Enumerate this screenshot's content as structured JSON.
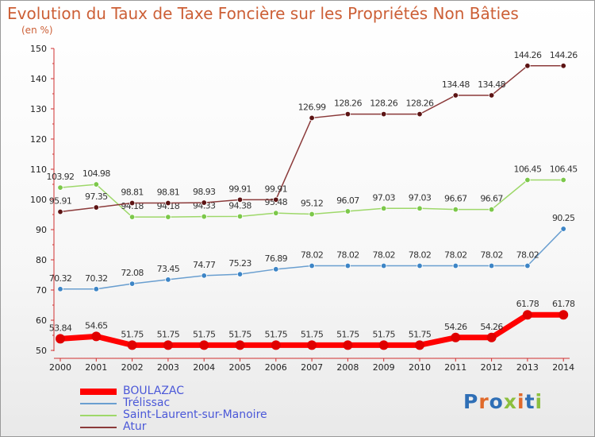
{
  "title": "Evolution du Taux de Taxe Foncière sur les Propriétés Non Bâties",
  "unit_label": "(en %)",
  "logo": {
    "text": "Proxiti",
    "letters": [
      "P",
      "r",
      "o",
      "x",
      "i",
      "t",
      "i"
    ],
    "colors": [
      "#2f6fb6",
      "#e06a2b",
      "#2f6fb6",
      "#8cbf3f",
      "#e06a2b",
      "#2f6fb6",
      "#8cbf3f"
    ]
  },
  "chart_data": {
    "type": "line",
    "title": "Evolution du Taux de Taxe Foncière sur les Propriétés Non Bâties",
    "ylabel": "(en %)",
    "xlabel": "",
    "ylim": [
      50,
      150
    ],
    "yticks": [
      50,
      60,
      70,
      80,
      90,
      100,
      110,
      120,
      130,
      140,
      150
    ],
    "categories": [
      "2000",
      "2001",
      "2002",
      "2003",
      "2004",
      "2005",
      "2006",
      "2007",
      "2008",
      "2009",
      "2010",
      "2011",
      "2012",
      "2013",
      "2014"
    ],
    "series": [
      {
        "name": "BOULAZAC",
        "color": "#ff0000",
        "marker": "#e00000",
        "width": 7,
        "r": 6,
        "values": [
          53.84,
          54.65,
          51.75,
          51.75,
          51.75,
          51.75,
          51.75,
          51.75,
          51.75,
          51.75,
          51.75,
          54.26,
          54.26,
          61.78,
          61.78
        ],
        "labels": [
          "53.84",
          "54.65",
          "51.75",
          "51.75",
          "51.75",
          "51.75",
          "51.75",
          "51.75",
          "51.75",
          "51.75",
          "51.75",
          "54.26",
          "54.26",
          "61.78",
          "61.78"
        ]
      },
      {
        "name": "Trélissac",
        "color": "#6a9fd0",
        "marker": "#3d85c6",
        "width": 1.5,
        "r": 3.3,
        "values": [
          70.32,
          70.32,
          72.08,
          73.45,
          74.77,
          75.23,
          76.89,
          78.02,
          78.02,
          78.02,
          78.02,
          78.02,
          78.02,
          78.02,
          90.25
        ],
        "labels": [
          "70.32",
          "70.32",
          "72.08",
          "73.45",
          "74.77",
          "75.23",
          "76.89",
          "78.02",
          "78.02",
          "78.02",
          "78.02",
          "78.02",
          "78.02",
          "78.02",
          "90.25"
        ]
      },
      {
        "name": "Saint-Laurent-sur-Manoire",
        "color": "#9ed86a",
        "marker": "#7cc84a",
        "width": 1.5,
        "r": 3.3,
        "values": [
          103.92,
          104.98,
          94.18,
          94.18,
          94.33,
          94.38,
          95.48,
          95.12,
          96.07,
          97.03,
          97.03,
          96.67,
          96.67,
          106.45,
          106.45
        ],
        "labels": [
          "103.92",
          "104.98",
          "94.18",
          "94.18",
          "94.33",
          "94.38",
          "95.48",
          "95.12",
          "96.07",
          "97.03",
          "97.03",
          "96.67",
          "96.67",
          "106.45",
          "106.45"
        ]
      },
      {
        "name": "Atur",
        "color": "#8b3a3a",
        "marker": "#5c1414",
        "width": 1.5,
        "r": 3.3,
        "values": [
          95.91,
          97.35,
          98.81,
          98.81,
          98.93,
          99.91,
          99.91,
          126.99,
          128.26,
          128.26,
          128.26,
          134.48,
          134.48,
          144.26,
          144.26
        ],
        "labels": [
          "95.91",
          "97.35",
          "98.81",
          "98.81",
          "98.93",
          "99.91",
          "99.91",
          "126.99",
          "128.26",
          "128.26",
          "128.26",
          "134.48",
          "134.48",
          "144.26",
          "144.26"
        ]
      }
    ],
    "legend": "bottom-left",
    "grid": false
  }
}
